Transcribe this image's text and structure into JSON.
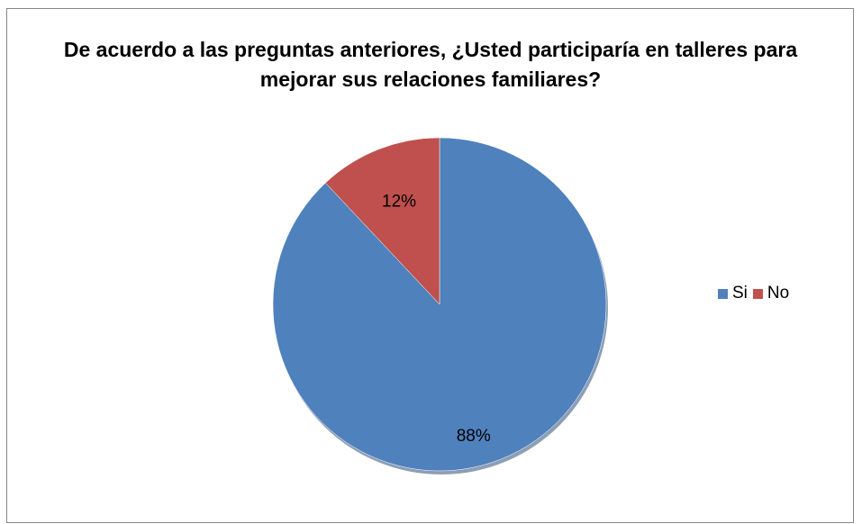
{
  "chart_data": {
    "type": "pie",
    "title": "De acuerdo a las preguntas anteriores, ¿Usted participaría en talleres para mejorar sus relaciones familiares?",
    "categories": [
      "Si",
      "No"
    ],
    "values": [
      88,
      12
    ],
    "data_labels": [
      "88%",
      "12%"
    ],
    "colors": [
      "#4F81BD",
      "#C0504D"
    ],
    "legend_position": "right"
  }
}
